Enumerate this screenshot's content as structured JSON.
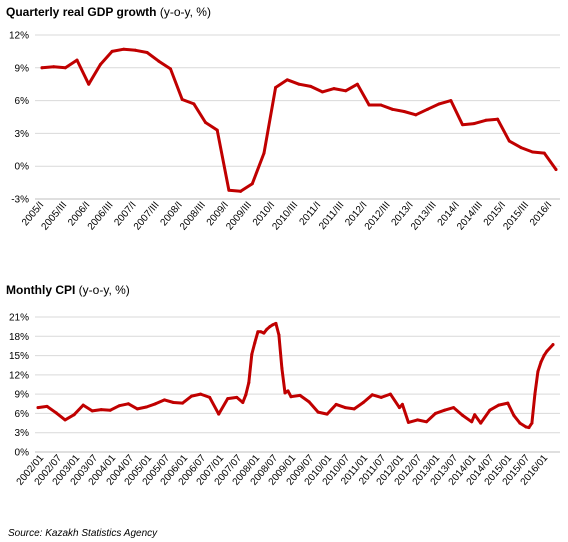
{
  "source": "Source: Kazakh Statistics Agency",
  "chart_data": [
    {
      "type": "line",
      "title": "Quarterly real GDP growth",
      "subtitle": "(y-o-y, %)",
      "ylim": [
        -3,
        12
      ],
      "yticks": [
        "-3%",
        "0%",
        "3%",
        "6%",
        "9%",
        "12%"
      ],
      "ytick_values": [
        -3,
        0,
        3,
        6,
        9,
        12
      ],
      "x_tick_labels": [
        "2005/I",
        "2005/III",
        "2006/I",
        "2006/III",
        "2007/I",
        "2007/III",
        "2008/I",
        "2008/III",
        "2009/I",
        "2009/III",
        "2010/I",
        "2010/III",
        "2011/I",
        "2011/III",
        "2012/I",
        "2012/III",
        "2013/I",
        "2013/III",
        "2014/I",
        "2014/III",
        "2015/I",
        "2015/III",
        "2016/I"
      ],
      "color": "#c00000",
      "grid": true,
      "x": [
        "2005/I",
        "2005/II",
        "2005/III",
        "2005/IV",
        "2006/I",
        "2006/II",
        "2006/III",
        "2006/IV",
        "2007/I",
        "2007/II",
        "2007/III",
        "2007/IV",
        "2008/I",
        "2008/II",
        "2008/III",
        "2008/IV",
        "2009/I",
        "2009/II",
        "2009/III",
        "2009/IV",
        "2010/I",
        "2010/II",
        "2010/III",
        "2010/IV",
        "2011/I",
        "2011/II",
        "2011/III",
        "2011/IV",
        "2012/I",
        "2012/II",
        "2012/III",
        "2012/IV",
        "2013/I",
        "2013/II",
        "2013/III",
        "2013/IV",
        "2014/I",
        "2014/II",
        "2014/III",
        "2014/IV",
        "2015/I",
        "2015/II",
        "2015/III",
        "2015/IV",
        "2016/I"
      ],
      "values": [
        9.0,
        9.1,
        9.0,
        9.7,
        7.5,
        9.3,
        10.5,
        10.7,
        10.6,
        10.4,
        9.6,
        8.9,
        6.1,
        5.7,
        4.0,
        3.3,
        -2.2,
        -2.3,
        -1.6,
        1.2,
        7.2,
        7.9,
        7.5,
        7.3,
        6.8,
        7.1,
        6.9,
        7.5,
        5.6,
        5.6,
        5.2,
        5.0,
        4.7,
        5.2,
        5.7,
        6.0,
        3.8,
        3.9,
        4.2,
        4.3,
        2.3,
        1.7,
        1.3,
        1.2,
        -0.3
      ]
    },
    {
      "type": "line",
      "title": "Monthly CPI",
      "subtitle": "(y-o-y, %)",
      "ylim": [
        0,
        21
      ],
      "yticks": [
        "0%",
        "3%",
        "6%",
        "9%",
        "12%",
        "15%",
        "18%",
        "21%"
      ],
      "ytick_values": [
        0,
        3,
        6,
        9,
        12,
        15,
        18,
        21
      ],
      "x_tick_labels": [
        "2002/01",
        "2002/07",
        "2003/01",
        "2003/07",
        "2004/01",
        "2004/07",
        "2005/01",
        "2005/07",
        "2006/01",
        "2006/07",
        "2007/01",
        "2007/07",
        "2008/01",
        "2008/07",
        "2009/01",
        "2009/07",
        "2010/01",
        "2010/07",
        "2011/01",
        "2011/07",
        "2012/01",
        "2012/07",
        "2013/01",
        "2013/07",
        "2014/01",
        "2014/07",
        "2015/01",
        "2015/07",
        "2016/01"
      ],
      "color": "#c00000",
      "grid": true,
      "x_start": "2002/01",
      "x_end": "2016/04",
      "x_anchor_dates": [
        "2002/01",
        "2002/04",
        "2002/07",
        "2002/10",
        "2003/01",
        "2003/04",
        "2003/07",
        "2003/10",
        "2004/01",
        "2004/04",
        "2004/07",
        "2004/10",
        "2005/01",
        "2005/04",
        "2005/07",
        "2005/10",
        "2006/01",
        "2006/04",
        "2006/07",
        "2006/10",
        "2007/01",
        "2007/04",
        "2007/07",
        "2007/09",
        "2007/10",
        "2007/11",
        "2007/12",
        "2008/01",
        "2008/02",
        "2008/03",
        "2008/04",
        "2008/05",
        "2008/06",
        "2008/07",
        "2008/08",
        "2008/09",
        "2008/10",
        "2008/11",
        "2008/12",
        "2009/01",
        "2009/04",
        "2009/07",
        "2009/10",
        "2010/01",
        "2010/04",
        "2010/07",
        "2010/10",
        "2011/01",
        "2011/04",
        "2011/07",
        "2011/10",
        "2012/01",
        "2012/02",
        "2012/04",
        "2012/07",
        "2012/10",
        "2013/01",
        "2013/04",
        "2013/07",
        "2013/10",
        "2014/01",
        "2014/02",
        "2014/04",
        "2014/07",
        "2014/10",
        "2015/01",
        "2015/03",
        "2015/05",
        "2015/07",
        "2015/08",
        "2015/09",
        "2015/10",
        "2015/11",
        "2015/12",
        "2016/01",
        "2016/02",
        "2016/04"
      ],
      "values": [
        6.9,
        7.1,
        6.1,
        5.0,
        5.8,
        7.3,
        6.4,
        6.6,
        6.5,
        7.2,
        7.5,
        6.7,
        7.0,
        7.5,
        8.1,
        7.7,
        7.6,
        8.7,
        9.0,
        8.5,
        5.9,
        8.3,
        8.5,
        7.7,
        8.9,
        10.8,
        15.2,
        17.0,
        18.7,
        18.7,
        18.5,
        19.1,
        19.5,
        19.8,
        20.0,
        18.2,
        13.0,
        9.2,
        9.5,
        8.6,
        8.8,
        7.8,
        6.2,
        5.9,
        7.4,
        6.9,
        6.7,
        7.7,
        8.9,
        8.5,
        9.0,
        6.9,
        7.4,
        4.6,
        5.0,
        4.7,
        6.0,
        6.5,
        6.9,
        5.7,
        4.7,
        5.8,
        4.5,
        6.5,
        7.3,
        7.6,
        5.7,
        4.5,
        3.9,
        3.8,
        4.5,
        9.0,
        12.5,
        14.0,
        15.0,
        15.7,
        16.7
      ]
    }
  ]
}
